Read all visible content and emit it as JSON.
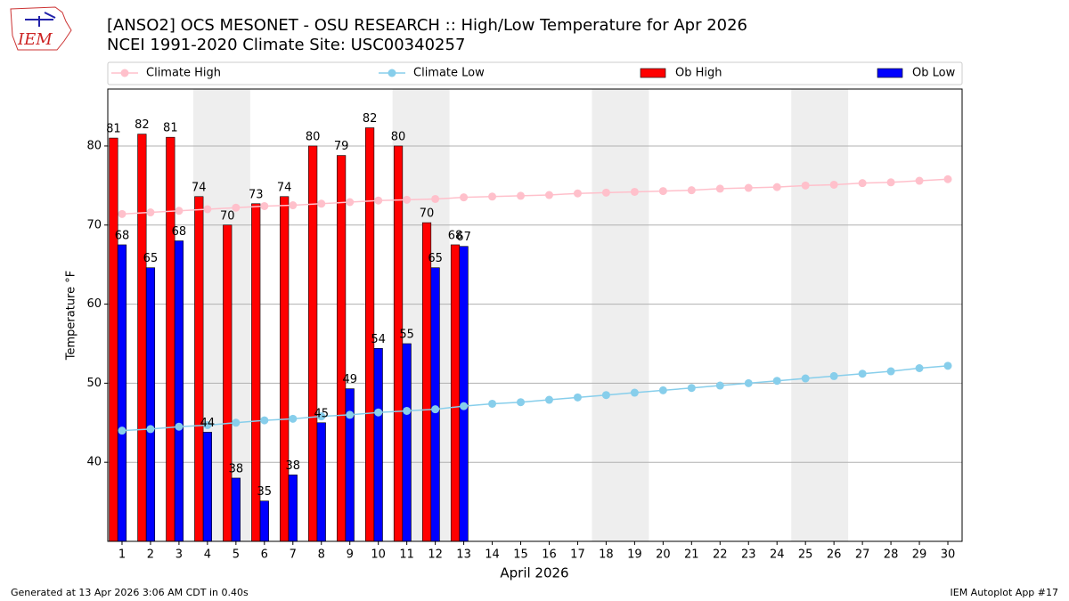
{
  "chart_data": {
    "type": "bar",
    "title": "[ANSO2] OCS MESONET - OSU RESEARCH :: High/Low Temperature for Apr 2026",
    "subtitle": "NCEI 1991-2020 Climate Site: USC00340257",
    "x_label": "April 2026",
    "y_label": "Temperature °F",
    "footer_left": "Generated at 13 Apr 2026 3:06 AM CDT in 0.40s",
    "footer_right": "IEM Autoplot App #17",
    "logo_text": "IEM",
    "x": [
      1,
      2,
      3,
      4,
      5,
      6,
      7,
      8,
      9,
      10,
      11,
      12,
      13,
      14,
      15,
      16,
      17,
      18,
      19,
      20,
      21,
      22,
      23,
      24,
      25,
      26,
      27,
      28,
      29,
      30
    ],
    "xlim": [
      0.5,
      30.5
    ],
    "xticks": [
      1,
      2,
      3,
      4,
      5,
      6,
      7,
      8,
      9,
      10,
      11,
      12,
      13,
      14,
      15,
      16,
      17,
      18,
      19,
      20,
      21,
      22,
      23,
      24,
      25,
      26,
      27,
      28,
      29,
      30
    ],
    "ylim": [
      30,
      87.2
    ],
    "yticks": [
      40,
      50,
      60,
      70,
      80
    ],
    "grid": true,
    "shaded_x": [
      [
        3.5,
        5.5
      ],
      [
        10.5,
        12.5
      ],
      [
        17.5,
        19.5
      ],
      [
        24.5,
        26.5
      ]
    ],
    "series": [
      {
        "name": "Climate High",
        "type": "line",
        "color": "#ffc0cb",
        "values": [
          71.4,
          71.6,
          71.8,
          72.0,
          72.2,
          72.4,
          72.5,
          72.7,
          72.9,
          73.1,
          73.2,
          73.3,
          73.5,
          73.6,
          73.7,
          73.8,
          74.0,
          74.1,
          74.2,
          74.3,
          74.4,
          74.6,
          74.7,
          74.8,
          75.0,
          75.1,
          75.3,
          75.4,
          75.6,
          75.8
        ]
      },
      {
        "name": "Climate Low",
        "type": "line",
        "color": "#87ceeb",
        "values": [
          44.0,
          44.2,
          44.5,
          44.7,
          45.0,
          45.3,
          45.5,
          45.8,
          46.0,
          46.3,
          46.5,
          46.7,
          47.1,
          47.4,
          47.6,
          47.9,
          48.2,
          48.5,
          48.8,
          49.1,
          49.4,
          49.7,
          50.0,
          50.3,
          50.6,
          50.9,
          51.2,
          51.5,
          51.9,
          52.2
        ]
      },
      {
        "name": "Ob High",
        "type": "bar",
        "color": "#ff0000",
        "values": [
          81.0,
          81.5,
          81.1,
          73.6,
          70.0,
          72.7,
          73.6,
          80.0,
          78.8,
          82.3,
          80.0,
          70.3,
          67.5,
          null,
          null,
          null,
          null,
          null,
          null,
          null,
          null,
          null,
          null,
          null,
          null,
          null,
          null,
          null,
          null,
          null
        ],
        "value_labels": [
          "81",
          "82",
          "81",
          "74",
          "70",
          "73",
          "74",
          "80",
          "79",
          "82",
          "80",
          "70",
          "68",
          null,
          null,
          null,
          null,
          null,
          null,
          null,
          null,
          null,
          null,
          null,
          null,
          null,
          null,
          null,
          null,
          null
        ]
      },
      {
        "name": "Ob Low",
        "type": "bar",
        "color": "#0000ff",
        "values": [
          67.5,
          64.6,
          68.0,
          43.8,
          38.0,
          35.1,
          38.4,
          45.0,
          49.3,
          54.4,
          55.0,
          64.6,
          67.3,
          null,
          null,
          null,
          null,
          null,
          null,
          null,
          null,
          null,
          null,
          null,
          null,
          null,
          null,
          null,
          null,
          null
        ],
        "value_labels": [
          "68",
          "65",
          "68",
          "44",
          "38",
          "35",
          "38",
          "45",
          "49",
          "54",
          "55",
          "65",
          "67",
          null,
          null,
          null,
          null,
          null,
          null,
          null,
          null,
          null,
          null,
          null,
          null,
          null,
          null,
          null,
          null,
          null
        ]
      }
    ]
  }
}
